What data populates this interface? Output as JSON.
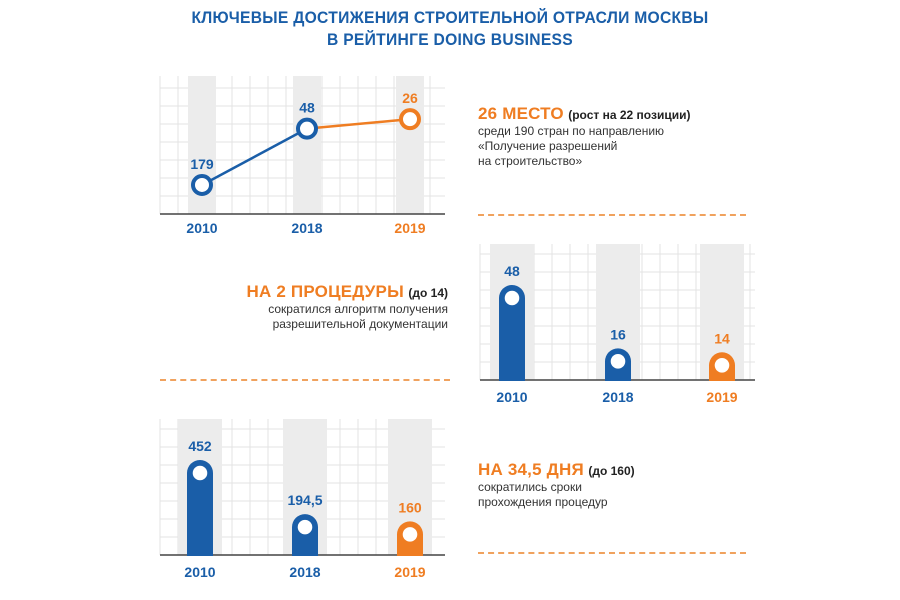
{
  "title": {
    "line1": "КЛЮЧЕВЫЕ ДОСТИЖЕНИЯ СТРОИТЕЛЬНОЙ ОТРАСЛИ МОСКВЫ",
    "line2": "В РЕЙТИНГЕ DOING BUSINESS"
  },
  "colors": {
    "blue": "#1a5ea8",
    "orange": "#ef7d22",
    "grid": "#e3e3e3",
    "column": "#ececec"
  },
  "chart_data": [
    {
      "type": "line",
      "categories": [
        "2010",
        "2018",
        "2019"
      ],
      "series": [
        {
          "values": [
            179,
            48,
            26
          ]
        }
      ],
      "value_labels": [
        "179",
        "48",
        "26"
      ],
      "highlight_last": true,
      "y_inverted": true
    },
    {
      "type": "bar",
      "categories": [
        "2010",
        "2018",
        "2019"
      ],
      "series": [
        {
          "values": [
            48,
            16,
            14
          ]
        }
      ],
      "value_labels": [
        "48",
        "16",
        "14"
      ],
      "highlight_last": true
    },
    {
      "type": "bar",
      "categories": [
        "2010",
        "2018",
        "2019"
      ],
      "series": [
        {
          "values": [
            452,
            194.5,
            160
          ]
        }
      ],
      "value_labels": [
        "452",
        "194,5",
        "160"
      ],
      "highlight_last": true
    }
  ],
  "captions": [
    {
      "highlight": "26 МЕСТО",
      "bold_suffix": "(рост на 22 позиции)",
      "lines": [
        "среди 190 стран по направлению",
        "«Получение разрешений",
        "на строительство»"
      ]
    },
    {
      "highlight": "НА 2 ПРОЦЕДУРЫ",
      "bold_suffix": "(до 14)",
      "lines": [
        "сократился алгоритм получения",
        "разрешительной документации"
      ]
    },
    {
      "highlight": "НА 34,5 ДНЯ",
      "bold_suffix": "(до 160)",
      "lines": [
        "сократились сроки",
        "прохождения процедур"
      ]
    }
  ]
}
